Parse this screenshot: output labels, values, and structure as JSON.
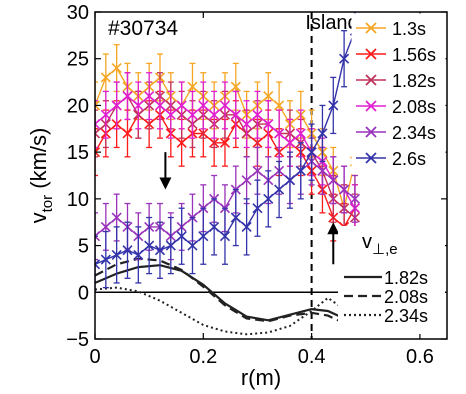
{
  "chart_data": {
    "type": "line",
    "shot_label": "#30734",
    "island_label": "Island",
    "xlabel": "r(m)",
    "ylabel_main": "v",
    "ylabel_sub": "tor",
    "ylabel_unit": " (km/s)",
    "xlim": [
      0,
      0.65
    ],
    "ylim": [
      -5,
      30
    ],
    "x_ticks": [
      0,
      0.2,
      0.4,
      0.6
    ],
    "x_tick_labels": [
      "0",
      "0.2",
      "0.4",
      "0.6"
    ],
    "y_ticks": [
      -5,
      0,
      5,
      10,
      15,
      20,
      25,
      30
    ],
    "y_tick_labels": [
      "−5",
      "0",
      "5",
      "10",
      "15",
      "20",
      "25",
      "30"
    ],
    "island_x": 0.4,
    "annotation_arrows": [
      {
        "x": 0.13,
        "from": 15,
        "to": 11,
        "direction": "down"
      },
      {
        "x": 0.44,
        "from": 3,
        "to": 7.5,
        "direction": "up"
      }
    ],
    "legend_tor": [
      "1.3s",
      "1.56s",
      "1.82s",
      "2.08s",
      "2.34s",
      "2.6s"
    ],
    "legend_perp_title_main": "v",
    "legend_perp_title_sub": "⊥,e",
    "legend_perp": [
      "1.82s",
      "2.08s",
      "2.34s"
    ],
    "series": [
      {
        "name": "1.3s",
        "color": "#f5a623",
        "err": 2.5,
        "x": [
          0.0,
          0.02,
          0.04,
          0.06,
          0.08,
          0.1,
          0.12,
          0.14,
          0.16,
          0.18,
          0.2,
          0.22,
          0.24,
          0.26,
          0.28,
          0.3,
          0.32,
          0.34,
          0.36,
          0.38,
          0.4,
          0.42,
          0.44,
          0.46,
          0.48
        ],
        "y": [
          20,
          23,
          24,
          22,
          21,
          22,
          23,
          21,
          20,
          22,
          21,
          20,
          21,
          22,
          19,
          20,
          21,
          20,
          18,
          19,
          17,
          15,
          13,
          9,
          14
        ]
      },
      {
        "name": "1.56s",
        "color": "#ff1a1a",
        "err": 2.5,
        "x": [
          0.0,
          0.02,
          0.04,
          0.06,
          0.08,
          0.1,
          0.12,
          0.14,
          0.16,
          0.18,
          0.2,
          0.22,
          0.24,
          0.26,
          0.28,
          0.3,
          0.32,
          0.34,
          0.36,
          0.38,
          0.4,
          0.42,
          0.44,
          0.46,
          0.48
        ],
        "y": [
          15,
          17,
          18,
          17,
          19,
          18,
          19,
          17,
          16,
          17,
          17,
          16,
          16,
          18,
          17,
          16,
          17,
          15,
          16,
          15,
          13,
          11,
          8,
          7,
          9
        ]
      },
      {
        "name": "1.82s",
        "color": "#c2325a",
        "err": 2.5,
        "x": [
          0.0,
          0.02,
          0.04,
          0.06,
          0.08,
          0.1,
          0.12,
          0.14,
          0.16,
          0.18,
          0.2,
          0.22,
          0.24,
          0.26,
          0.28,
          0.3,
          0.32,
          0.34,
          0.36,
          0.38,
          0.4,
          0.42,
          0.44,
          0.46,
          0.48
        ],
        "y": [
          17,
          18,
          20,
          21,
          19,
          20,
          21,
          20,
          19,
          18,
          19,
          18,
          19,
          19,
          17,
          18,
          18,
          17,
          17,
          16,
          15,
          13,
          10,
          9,
          8
        ]
      },
      {
        "name": "2.08s",
        "color": "#e020d0",
        "err": 2.5,
        "x": [
          0.0,
          0.02,
          0.04,
          0.06,
          0.08,
          0.1,
          0.12,
          0.14,
          0.16,
          0.18,
          0.2,
          0.22,
          0.24,
          0.26,
          0.28,
          0.3,
          0.32,
          0.34,
          0.36,
          0.38,
          0.4,
          0.42,
          0.44,
          0.46,
          0.48
        ],
        "y": [
          18,
          19,
          20,
          21,
          20,
          21,
          20,
          19,
          20,
          19,
          20,
          19,
          20,
          19,
          18,
          19,
          18,
          17,
          16,
          17,
          15,
          14,
          12,
          11,
          9
        ]
      },
      {
        "name": "2.34s",
        "color": "#9933bb",
        "err": 2.5,
        "x": [
          0.0,
          0.02,
          0.04,
          0.06,
          0.08,
          0.1,
          0.12,
          0.14,
          0.16,
          0.18,
          0.2,
          0.22,
          0.24,
          0.26,
          0.28,
          0.3,
          0.32,
          0.34,
          0.36,
          0.38,
          0.4,
          0.42,
          0.44,
          0.46,
          0.48
        ],
        "y": [
          6,
          7,
          8,
          7,
          6,
          7,
          7,
          6,
          7,
          8,
          9,
          10,
          9,
          11,
          12,
          13,
          12,
          13,
          12,
          13,
          14,
          13,
          12,
          11,
          10
        ]
      },
      {
        "name": "2.6s",
        "color": "#3333aa",
        "err": 3,
        "x": [
          0.0,
          0.02,
          0.04,
          0.06,
          0.08,
          0.1,
          0.12,
          0.14,
          0.16,
          0.18,
          0.2,
          0.22,
          0.24,
          0.26,
          0.28,
          0.3,
          0.32,
          0.34,
          0.36,
          0.38,
          0.4,
          0.42,
          0.44,
          0.46,
          0.48
        ],
        "y": [
          3,
          3.5,
          4,
          4.5,
          4,
          5,
          4.5,
          5,
          6,
          5,
          6,
          7,
          6,
          8,
          7,
          9,
          10,
          11,
          12,
          13,
          15,
          17,
          20,
          25,
          28
        ]
      }
    ],
    "perp_series": [
      {
        "name": "1.82s",
        "style": "solid",
        "color": "#222222",
        "x": [
          0.0,
          0.04,
          0.08,
          0.12,
          0.16,
          0.2,
          0.24,
          0.28,
          0.32,
          0.36,
          0.4,
          0.43,
          0.46
        ],
        "y": [
          1,
          2,
          2.7,
          2.9,
          2.3,
          0.8,
          -1.2,
          -2.6,
          -3.0,
          -2.4,
          -1.8,
          -2.0,
          -2.8
        ]
      },
      {
        "name": "2.08s",
        "style": "dashed",
        "color": "#222222",
        "x": [
          0.0,
          0.04,
          0.08,
          0.12,
          0.16,
          0.2,
          0.24,
          0.28,
          0.32,
          0.36,
          0.4,
          0.43,
          0.46
        ],
        "y": [
          1.8,
          3,
          3.6,
          3.4,
          2.4,
          0.6,
          -1.4,
          -2.8,
          -3.1,
          -2.5,
          -2.2,
          -2.5,
          -3.3
        ]
      },
      {
        "name": "2.34s",
        "style": "dotted",
        "color": "#222222",
        "x": [
          0.0,
          0.04,
          0.08,
          0.12,
          0.16,
          0.2,
          0.24,
          0.28,
          0.32,
          0.36,
          0.4,
          0.43,
          0.46
        ],
        "y": [
          0.3,
          0.5,
          0.1,
          -0.9,
          -2.2,
          -3.5,
          -4.2,
          -4.5,
          -4.3,
          -3.6,
          -2.0,
          -0.6,
          -1.8
        ]
      }
    ]
  }
}
